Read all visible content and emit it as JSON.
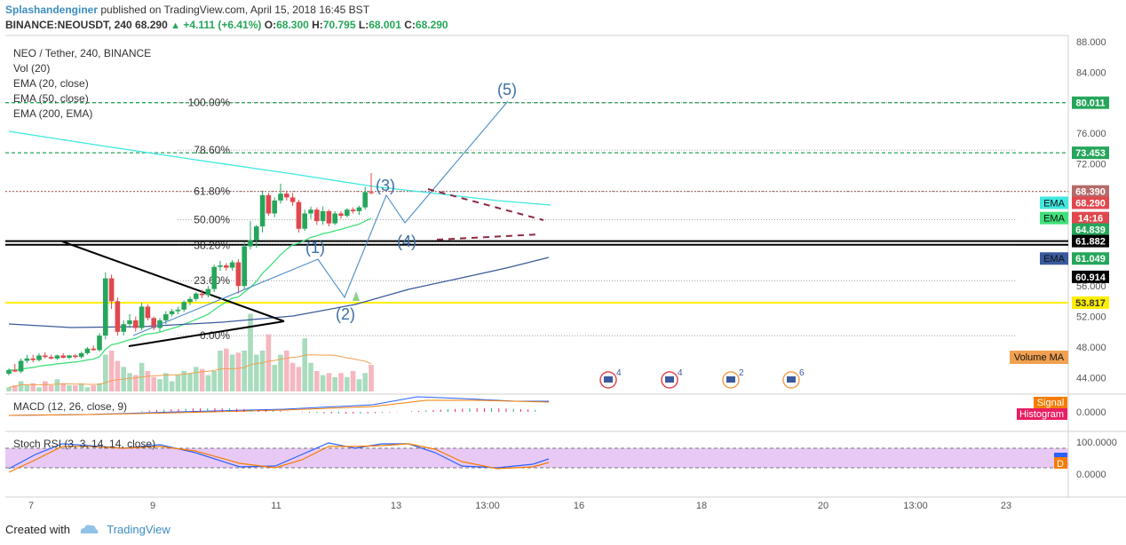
{
  "header": {
    "author": "Splashandenginer",
    "published": "published on TradingView.com, April 15, 2018 16:45 BST",
    "symbol": "BINANCE:NEOUSDT, 240",
    "last": "68.290",
    "change": "+4.111 (+6.41%)",
    "open_label": "O:",
    "open": "68.300",
    "high_label": "H:",
    "high": "70.795",
    "low_label": "L:",
    "low": "68.001",
    "close_label": "C:",
    "close": "68.290"
  },
  "legend": {
    "title": "NEO / Tether, 240, BINANCE",
    "vol": "Vol (20)",
    "ema20": "EMA (20, close)",
    "ema50": "EMA (50, close)",
    "ema200": "EMA (200, EMA)"
  },
  "macd_label": "MACD (12, 26, close, 9)",
  "stoch_label": "Stoch RSI (3, 3, 14, 14, close)",
  "footer": {
    "created": "Created with",
    "brand": "TradingView"
  },
  "colors": {
    "up": "#26a65b",
    "down": "#e0484e",
    "vol_up": "#a8dcbd",
    "vol_down": "#f5b7c0",
    "ema20": "#40e07a",
    "ema50": "#40e8e0",
    "ema200": "#3a5a9c",
    "fib": "#888888",
    "support": "#ffee00",
    "wave": "#4a8bc7",
    "stoch_fill": "#e8c9f5"
  },
  "chart_data": {
    "type": "candlestick",
    "x_tick_labels": [
      "7",
      "9",
      "11",
      "13",
      "13:00",
      "16",
      "18",
      "20",
      "13:00",
      "23"
    ],
    "y_tick_labels": [
      "88.000",
      "84.000",
      "80.000",
      "76.000",
      "72.000",
      "68.000",
      "64.000",
      "60.000",
      "56.000",
      "52.000",
      "48.000",
      "44.000"
    ],
    "ylim": [
      41,
      88.5
    ],
    "macd_ticks": [
      "0.0000"
    ],
    "stoch_ticks": [
      "100.0000",
      "0.0000"
    ],
    "price_badges": [
      {
        "value": 80.011,
        "label": "80.011",
        "color": "#26a65b"
      },
      {
        "value": 73.453,
        "label": "73.453",
        "color": "#26a65b"
      },
      {
        "value": 68.39,
        "label": "68.390",
        "color": "#b56b6b"
      },
      {
        "value": 66.9,
        "label": "68.290",
        "color": "#e0484e"
      },
      {
        "value": 64.9,
        "label": "14:16",
        "color": "#e0484e"
      },
      {
        "value": 63.4,
        "label": "64.839",
        "color": "#26a65b"
      },
      {
        "value": 61.882,
        "label": "61.882",
        "color": "#000000"
      },
      {
        "value": 59.6,
        "label": "61.049",
        "color": "#26a65b"
      },
      {
        "value": 57.2,
        "label": "60.914",
        "color": "#000000"
      },
      {
        "value": 53.817,
        "label": "53.817",
        "color": "#ffee00"
      }
    ],
    "ema_tags": [
      {
        "label": "EMA",
        "value": 66.9,
        "color": "#40e8e0"
      },
      {
        "label": "EMA",
        "value": 64.9,
        "color": "#40e07a"
      },
      {
        "label": "EMA",
        "value": 59.6,
        "color": "#3a5a9c"
      }
    ],
    "fib_levels": [
      {
        "label": "100.00%",
        "value": 80.011
      },
      {
        "label": "78.60%",
        "value": 73.8
      },
      {
        "label": "61.80%",
        "value": 68.4
      },
      {
        "label": "50.00%",
        "value": 64.7
      },
      {
        "label": "38.20%",
        "value": 61.3
      },
      {
        "label": "23.60%",
        "value": 56.7
      },
      {
        "label": "0.00%",
        "value": 49.5
      }
    ],
    "horizontal_lines": [
      {
        "value": 61.882,
        "style": "solid",
        "color": "#000000"
      },
      {
        "value": 61.4,
        "style": "solid",
        "color": "#000000"
      },
      {
        "value": 53.817,
        "style": "solid",
        "color": "#ffee00"
      },
      {
        "value": 80.011,
        "style": "dashed",
        "color": "#26a65b"
      },
      {
        "value": 73.453,
        "style": "dashed",
        "color": "#26a65b"
      },
      {
        "value": 68.39,
        "style": "dotted",
        "color": "#b56b6b"
      }
    ],
    "wave_labels": [
      "(1)",
      "(2)",
      "(3)",
      "(4)",
      "(5)"
    ],
    "event_counts": [
      "4",
      "4",
      "2",
      "6"
    ],
    "volume_ma_label": "Volume MA",
    "macd_tags": [
      "Signal",
      "Histogram"
    ],
    "stoch_tag": "D",
    "candles": [
      {
        "o": 44.5,
        "h": 45.2,
        "l": 44.3,
        "c": 45.0
      },
      {
        "o": 45.0,
        "h": 45.8,
        "l": 44.7,
        "c": 44.8
      },
      {
        "o": 44.8,
        "h": 46.5,
        "l": 44.6,
        "c": 46.2
      },
      {
        "o": 46.2,
        "h": 47.0,
        "l": 45.9,
        "c": 46.5
      },
      {
        "o": 46.5,
        "h": 47.0,
        "l": 46.0,
        "c": 46.3
      },
      {
        "o": 46.3,
        "h": 47.2,
        "l": 46.1,
        "c": 46.9
      },
      {
        "o": 46.9,
        "h": 47.3,
        "l": 46.5,
        "c": 46.7
      },
      {
        "o": 46.7,
        "h": 47.0,
        "l": 46.4,
        "c": 46.5
      },
      {
        "o": 46.5,
        "h": 47.0,
        "l": 46.3,
        "c": 46.9
      },
      {
        "o": 46.9,
        "h": 47.2,
        "l": 46.5,
        "c": 46.6
      },
      {
        "o": 46.6,
        "h": 47.0,
        "l": 46.4,
        "c": 46.9
      },
      {
        "o": 46.9,
        "h": 47.1,
        "l": 46.5,
        "c": 46.7
      },
      {
        "o": 46.7,
        "h": 47.4,
        "l": 46.5,
        "c": 47.2
      },
      {
        "o": 47.2,
        "h": 48.0,
        "l": 47.0,
        "c": 47.8
      },
      {
        "o": 47.8,
        "h": 48.2,
        "l": 47.5,
        "c": 47.6
      },
      {
        "o": 47.6,
        "h": 49.8,
        "l": 47.4,
        "c": 49.5
      },
      {
        "o": 49.5,
        "h": 57.8,
        "l": 49.0,
        "c": 57.0
      },
      {
        "o": 57.0,
        "h": 57.5,
        "l": 53.0,
        "c": 54.0
      },
      {
        "o": 54.0,
        "h": 54.5,
        "l": 49.5,
        "c": 50.0
      },
      {
        "o": 50.0,
        "h": 51.5,
        "l": 49.5,
        "c": 51.0
      },
      {
        "o": 51.0,
        "h": 52.3,
        "l": 50.5,
        "c": 51.5
      },
      {
        "o": 51.5,
        "h": 52.0,
        "l": 50.0,
        "c": 50.5
      },
      {
        "o": 50.5,
        "h": 53.8,
        "l": 50.2,
        "c": 53.3
      },
      {
        "o": 53.3,
        "h": 53.6,
        "l": 51.5,
        "c": 51.8
      },
      {
        "o": 51.8,
        "h": 52.0,
        "l": 50.2,
        "c": 50.5
      },
      {
        "o": 50.5,
        "h": 51.8,
        "l": 50.0,
        "c": 51.5
      },
      {
        "o": 51.5,
        "h": 52.7,
        "l": 51.0,
        "c": 52.3
      },
      {
        "o": 52.3,
        "h": 53.0,
        "l": 52.0,
        "c": 52.7
      },
      {
        "o": 52.7,
        "h": 53.3,
        "l": 52.3,
        "c": 52.9
      },
      {
        "o": 52.9,
        "h": 54.1,
        "l": 52.6,
        "c": 53.9
      },
      {
        "o": 53.9,
        "h": 54.6,
        "l": 53.5,
        "c": 54.3
      },
      {
        "o": 54.3,
        "h": 55.2,
        "l": 54.0,
        "c": 55.0
      },
      {
        "o": 55.0,
        "h": 55.5,
        "l": 54.4,
        "c": 54.8
      },
      {
        "o": 54.8,
        "h": 56.0,
        "l": 54.5,
        "c": 55.6
      },
      {
        "o": 55.6,
        "h": 58.8,
        "l": 55.2,
        "c": 58.5
      },
      {
        "o": 58.5,
        "h": 59.3,
        "l": 58.0,
        "c": 58.7
      },
      {
        "o": 58.7,
        "h": 59.0,
        "l": 58.0,
        "c": 58.4
      },
      {
        "o": 58.4,
        "h": 59.4,
        "l": 58.0,
        "c": 59.1
      },
      {
        "o": 59.1,
        "h": 59.5,
        "l": 55.0,
        "c": 56.0
      },
      {
        "o": 56.0,
        "h": 61.7,
        "l": 55.5,
        "c": 61.2
      },
      {
        "o": 61.2,
        "h": 64.5,
        "l": 60.8,
        "c": 62.0
      },
      {
        "o": 62.0,
        "h": 64.0,
        "l": 61.0,
        "c": 63.8
      },
      {
        "o": 63.8,
        "h": 68.5,
        "l": 63.0,
        "c": 67.9
      },
      {
        "o": 67.9,
        "h": 68.2,
        "l": 65.2,
        "c": 65.5
      },
      {
        "o": 65.5,
        "h": 67.6,
        "l": 65.0,
        "c": 67.2
      },
      {
        "o": 67.2,
        "h": 69.4,
        "l": 66.8,
        "c": 68.1
      },
      {
        "o": 68.1,
        "h": 68.5,
        "l": 67.2,
        "c": 67.6
      },
      {
        "o": 67.6,
        "h": 68.2,
        "l": 66.5,
        "c": 67.0
      },
      {
        "o": 67.0,
        "h": 67.3,
        "l": 63.0,
        "c": 63.5
      },
      {
        "o": 63.5,
        "h": 66.0,
        "l": 63.2,
        "c": 65.5
      },
      {
        "o": 65.5,
        "h": 66.4,
        "l": 64.8,
        "c": 66.0
      },
      {
        "o": 66.0,
        "h": 66.3,
        "l": 64.0,
        "c": 64.5
      },
      {
        "o": 64.5,
        "h": 66.4,
        "l": 64.0,
        "c": 65.8
      },
      {
        "o": 65.8,
        "h": 66.0,
        "l": 63.8,
        "c": 64.2
      },
      {
        "o": 64.2,
        "h": 65.8,
        "l": 64.0,
        "c": 65.5
      },
      {
        "o": 65.5,
        "h": 65.8,
        "l": 64.8,
        "c": 65.2
      },
      {
        "o": 65.2,
        "h": 66.2,
        "l": 65.0,
        "c": 66.0
      },
      {
        "o": 66.0,
        "h": 66.3,
        "l": 65.5,
        "c": 65.8
      },
      {
        "o": 65.8,
        "h": 66.5,
        "l": 65.3,
        "c": 66.3
      },
      {
        "o": 66.3,
        "h": 69.0,
        "l": 66.0,
        "c": 68.3
      },
      {
        "o": 68.3,
        "h": 70.795,
        "l": 68.0,
        "c": 68.29
      }
    ],
    "volume": [
      2,
      3,
      5,
      3,
      4,
      2,
      5,
      3,
      6,
      4,
      3,
      3,
      4,
      2,
      3,
      4,
      18,
      20,
      15,
      12,
      9,
      8,
      14,
      10,
      7,
      6,
      9,
      5,
      8,
      10,
      9,
      12,
      11,
      8,
      10,
      20,
      21,
      18,
      19,
      20,
      38,
      18,
      20,
      28,
      13,
      18,
      20,
      14,
      12,
      26,
      14,
      10,
      8,
      9,
      7,
      9,
      7,
      10,
      6,
      9,
      13
    ]
  }
}
